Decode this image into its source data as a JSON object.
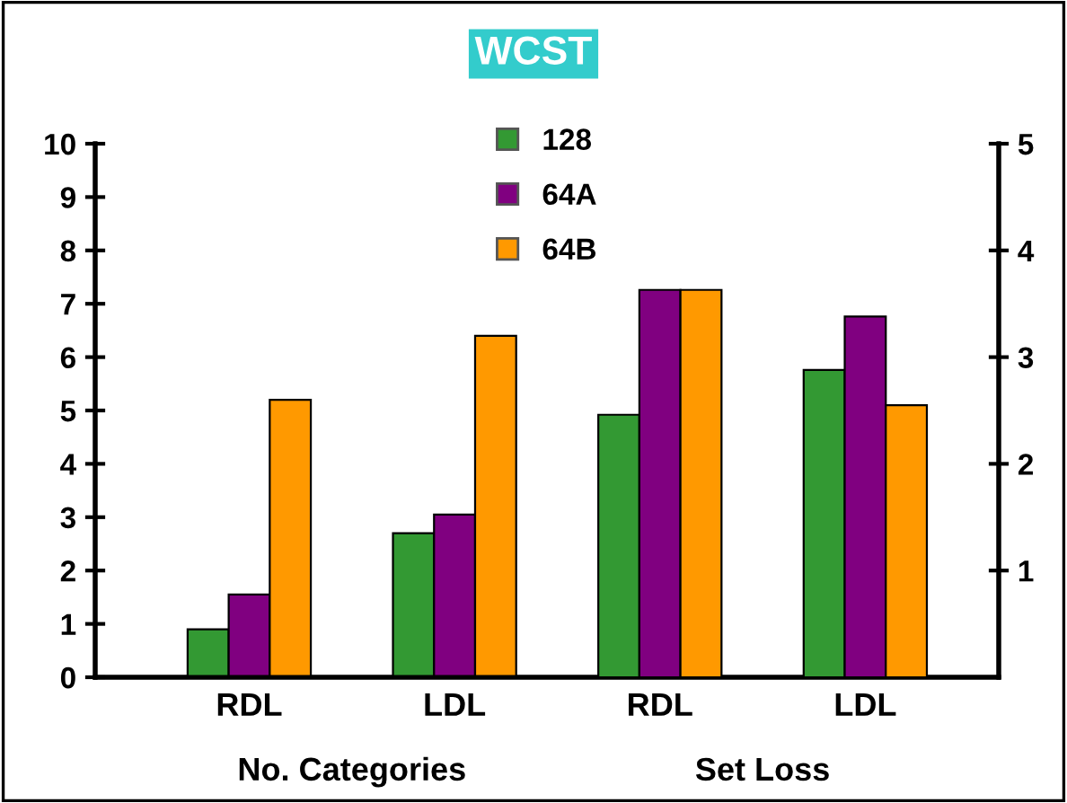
{
  "chart_data": {
    "type": "bar",
    "title": "WCST",
    "categories": [
      "RDL",
      "LDL",
      "RDL",
      "LDL"
    ],
    "series": [
      {
        "name": "128",
        "color": "#339933",
        "values": [
          0.9,
          2.7,
          null,
          null
        ]
      },
      {
        "name": "64A",
        "color": "#800080",
        "values": [
          1.55,
          3.05,
          null,
          null
        ]
      },
      {
        "name": "64B",
        "color": "#ff9900",
        "values": [
          5.2,
          6.4,
          null,
          null
        ]
      },
      {
        "color": "#339933",
        "axis": "y2",
        "values": [
          null,
          null,
          2.46,
          2.88
        ]
      },
      {
        "color": "#800080",
        "axis": "y2",
        "values": [
          null,
          null,
          3.63,
          3.38
        ]
      },
      {
        "color": "#ff9900",
        "axis": "y2",
        "values": [
          null,
          null,
          3.63,
          2.55
        ]
      }
    ],
    "ylim": [
      0,
      10
    ],
    "yticks": [
      0,
      1,
      2,
      3,
      4,
      5,
      6,
      7,
      8,
      9,
      10
    ],
    "y2lim": [
      0,
      5
    ],
    "y2ticks": [
      1,
      2,
      3,
      4,
      5
    ],
    "annotations": [
      "No. Categories",
      "Set Loss"
    ],
    "legend": "top",
    "grid": false
  }
}
